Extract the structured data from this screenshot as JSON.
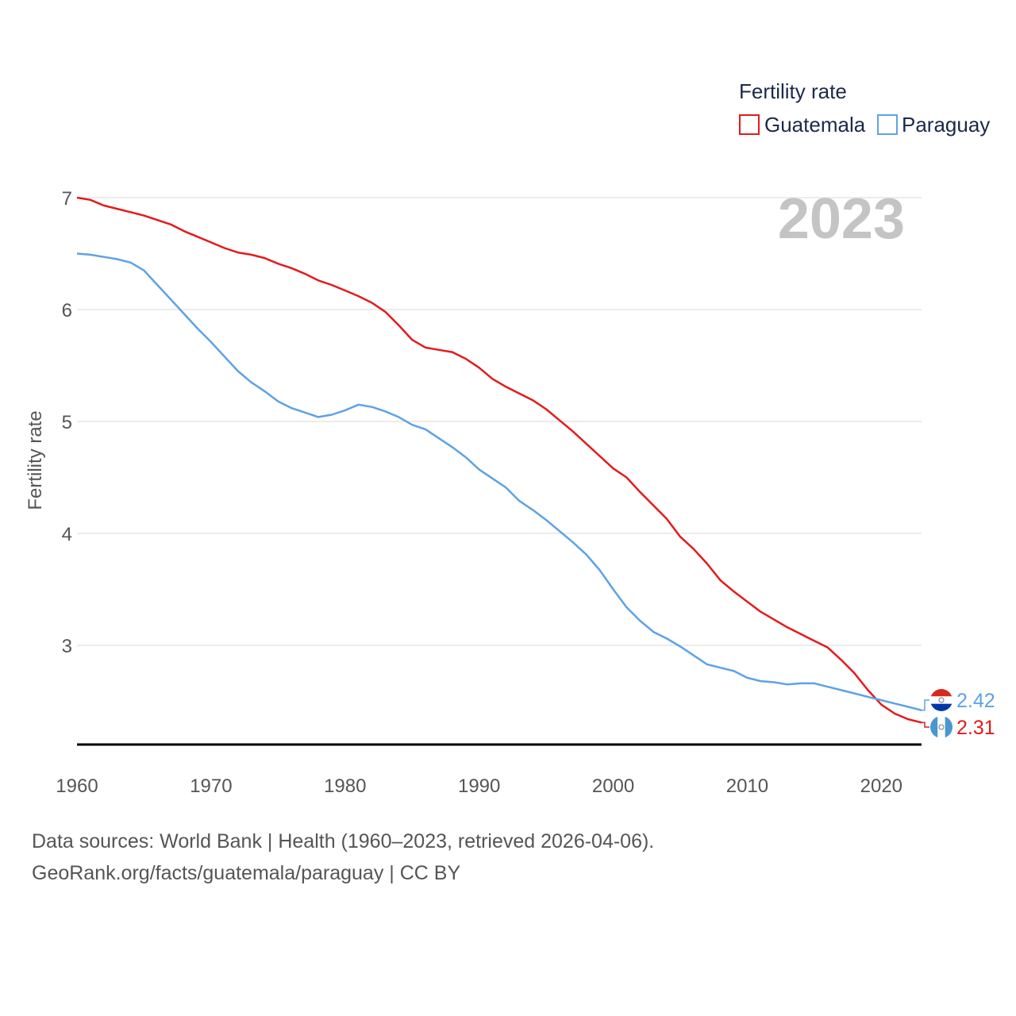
{
  "chart_data": {
    "type": "line",
    "title": "Fertility rate",
    "year_label": "2023",
    "xlabel": "",
    "ylabel": "Fertility rate",
    "xlim": [
      1960,
      2023
    ],
    "ylim": [
      2.1,
      7.0
    ],
    "yticks": [
      3,
      4,
      5,
      6,
      7
    ],
    "xticks": [
      1960,
      1970,
      1980,
      1990,
      2000,
      2010,
      2020
    ],
    "legend": "top-right",
    "x": [
      1960,
      1961,
      1962,
      1963,
      1964,
      1965,
      1966,
      1967,
      1968,
      1969,
      1970,
      1971,
      1972,
      1973,
      1974,
      1975,
      1976,
      1977,
      1978,
      1979,
      1980,
      1981,
      1982,
      1983,
      1984,
      1985,
      1986,
      1987,
      1988,
      1989,
      1990,
      1991,
      1992,
      1993,
      1994,
      1995,
      1996,
      1997,
      1998,
      1999,
      2000,
      2001,
      2002,
      2003,
      2004,
      2005,
      2006,
      2007,
      2008,
      2009,
      2010,
      2011,
      2012,
      2013,
      2014,
      2015,
      2016,
      2017,
      2018,
      2019,
      2020,
      2021,
      2022,
      2023
    ],
    "series": [
      {
        "name": "Guatemala",
        "color": "#e41a1c",
        "end_label": "2.31",
        "values": [
          7.0,
          6.98,
          6.93,
          6.9,
          6.87,
          6.84,
          6.8,
          6.76,
          6.7,
          6.65,
          6.6,
          6.55,
          6.51,
          6.49,
          6.46,
          6.41,
          6.37,
          6.32,
          6.26,
          6.22,
          6.17,
          6.12,
          6.06,
          5.98,
          5.86,
          5.73,
          5.66,
          5.64,
          5.62,
          5.56,
          5.48,
          5.38,
          5.31,
          5.25,
          5.19,
          5.11,
          5.01,
          4.91,
          4.8,
          4.69,
          4.58,
          4.5,
          4.37,
          4.25,
          4.13,
          3.97,
          3.86,
          3.73,
          3.58,
          3.48,
          3.39,
          3.3,
          3.23,
          3.16,
          3.1,
          3.04,
          2.98,
          2.87,
          2.75,
          2.6,
          2.47,
          2.39,
          2.34,
          2.31
        ]
      },
      {
        "name": "Paraguay",
        "color": "#5ea2e6",
        "end_label": "2.42",
        "values": [
          6.5,
          6.49,
          6.47,
          6.45,
          6.42,
          6.35,
          6.22,
          6.09,
          5.96,
          5.83,
          5.71,
          5.58,
          5.45,
          5.35,
          5.27,
          5.18,
          5.12,
          5.08,
          5.04,
          5.06,
          5.1,
          5.15,
          5.13,
          5.09,
          5.04,
          4.97,
          4.93,
          4.85,
          4.77,
          4.68,
          4.57,
          4.49,
          4.41,
          4.29,
          4.21,
          4.12,
          4.02,
          3.92,
          3.81,
          3.67,
          3.5,
          3.34,
          3.22,
          3.12,
          3.06,
          2.99,
          2.91,
          2.83,
          2.8,
          2.77,
          2.71,
          2.68,
          2.67,
          2.65,
          2.66,
          2.66,
          2.63,
          2.6,
          2.57,
          2.54,
          2.51,
          2.48,
          2.45,
          2.42
        ]
      }
    ]
  },
  "footer": {
    "line1": "Data sources: World Bank | Health (1960–2023, retrieved 2026-04-06).",
    "line2": "GeoRank.org/facts/guatemala/paraguay | CC BY"
  },
  "colors": {
    "grid": "#e6e6e6",
    "axis": "#000000",
    "tick_text": "#555555",
    "legend_text": "#1b2a4a",
    "year_text": "#c4c4c4"
  }
}
